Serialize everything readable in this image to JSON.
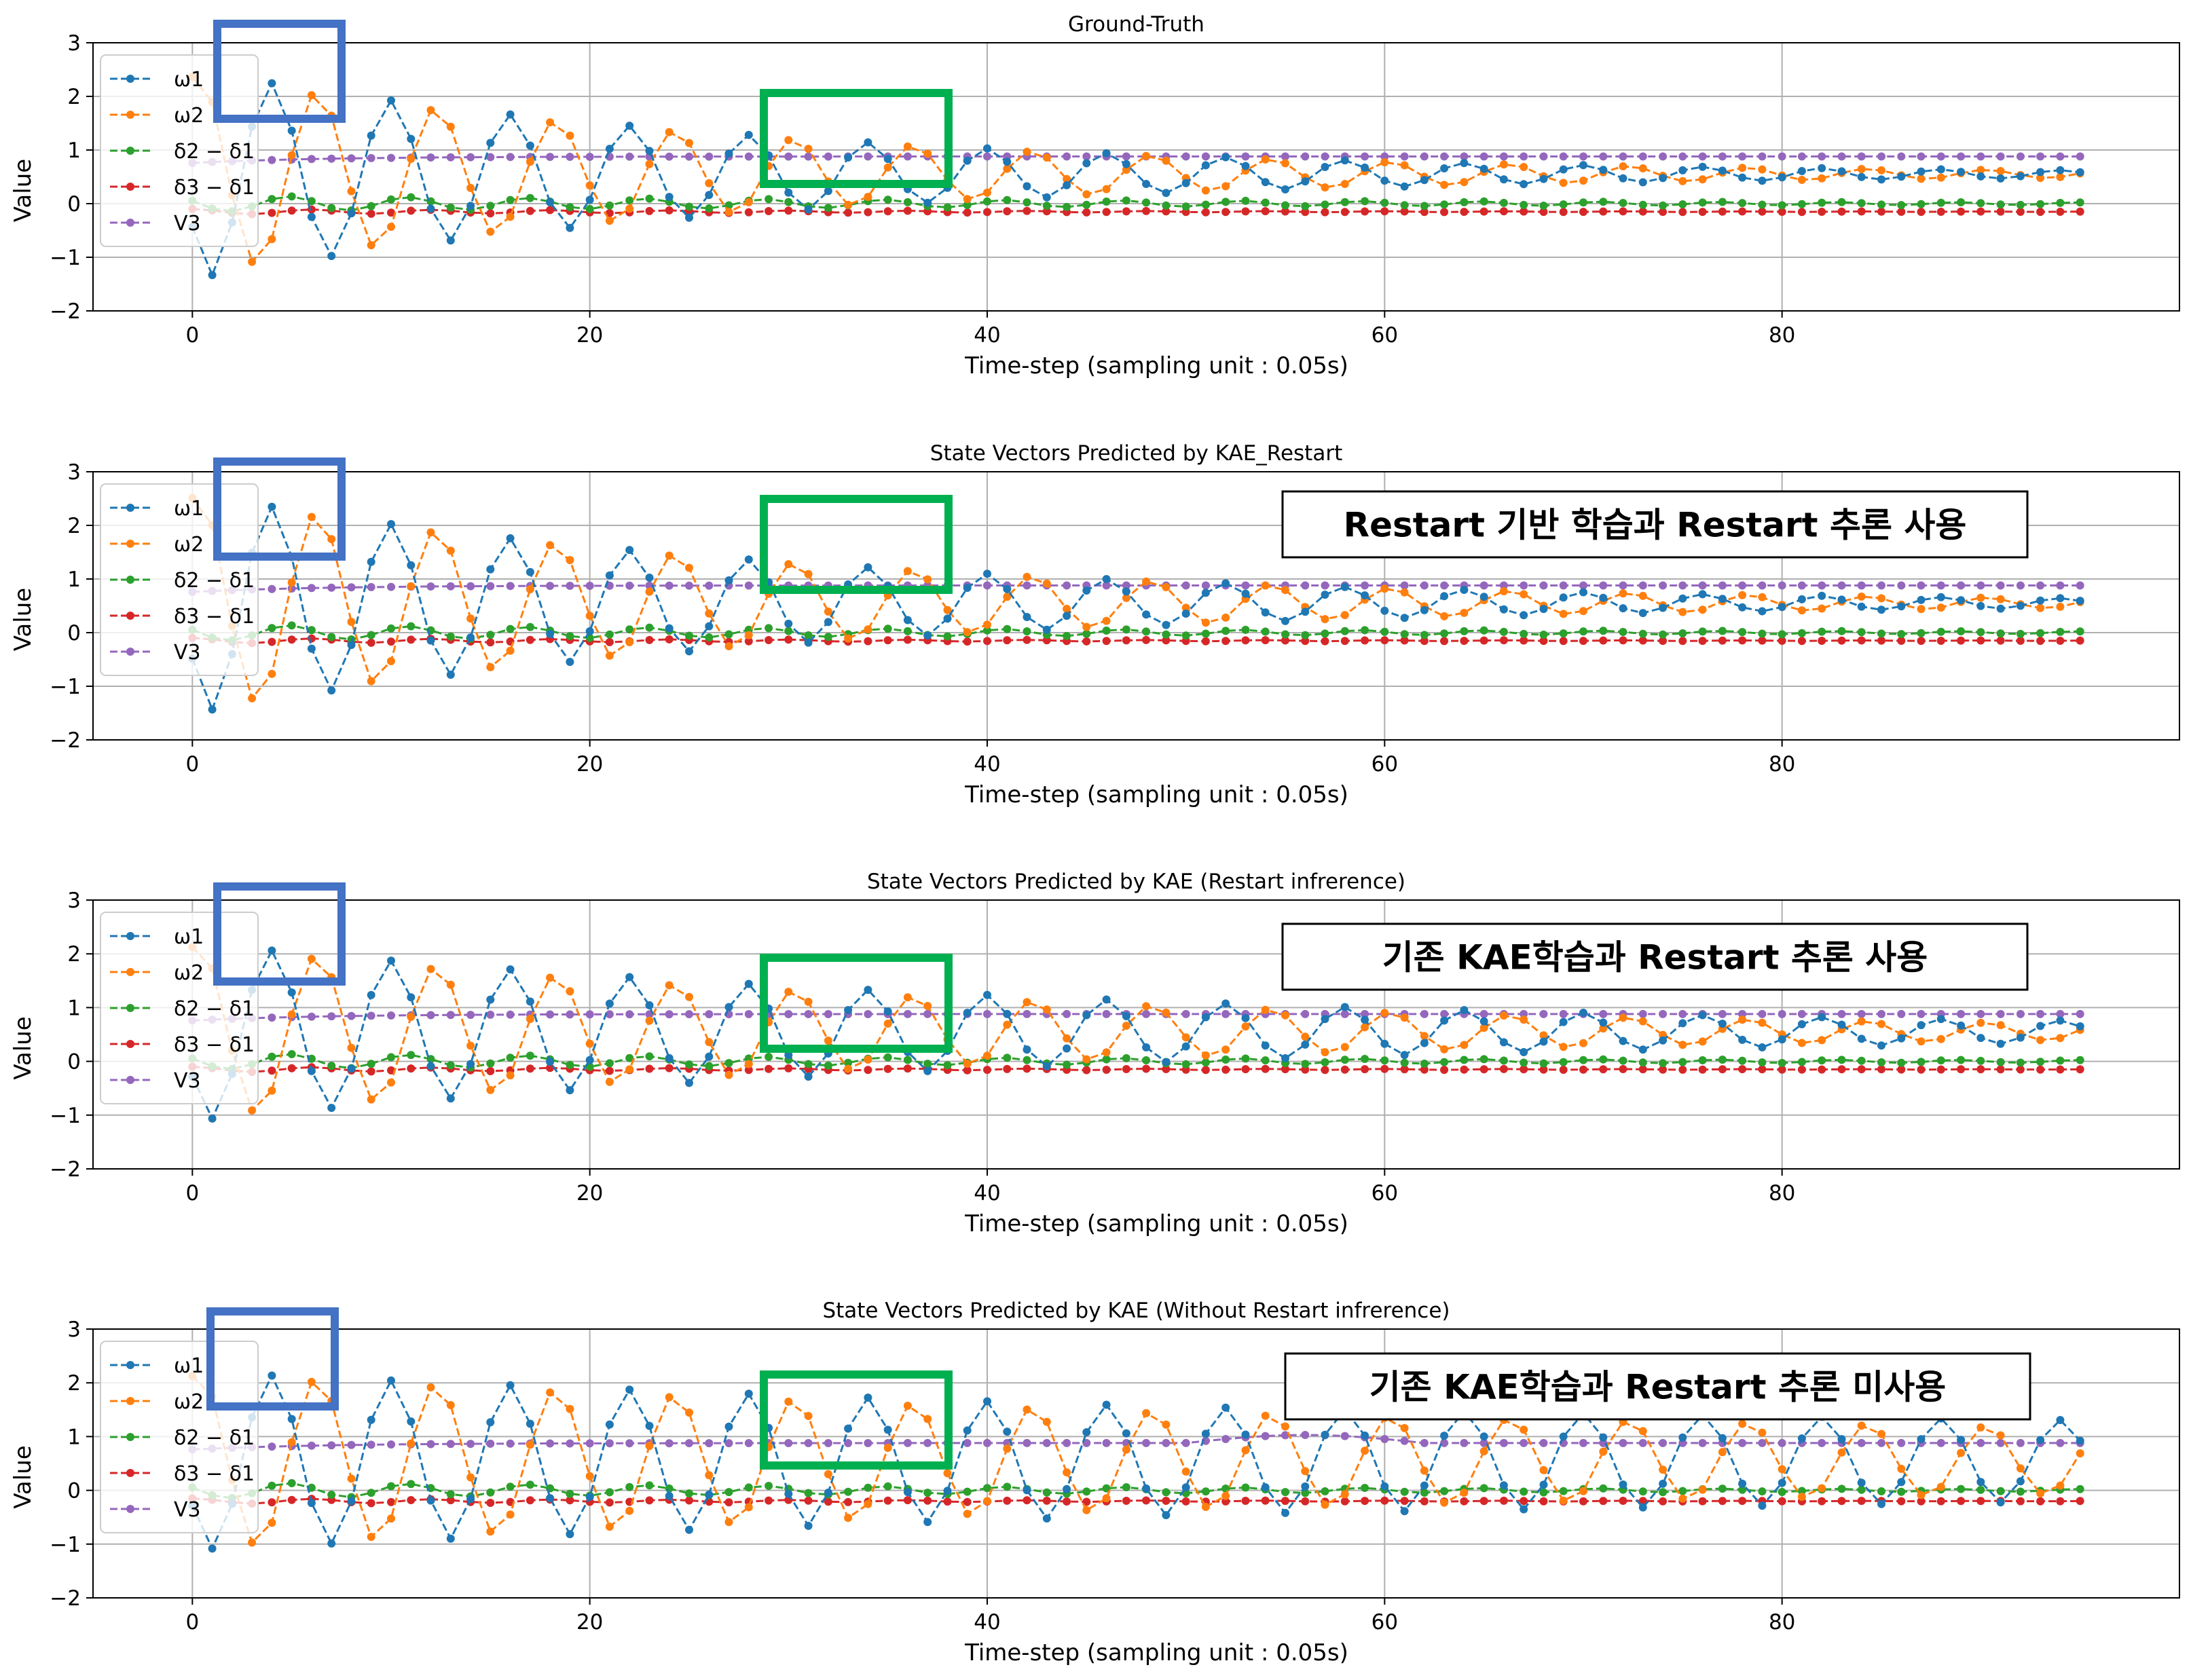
{
  "figure": {
    "colors": {
      "omega1": "#1f77b4",
      "omega2": "#ff7f0e",
      "delta21": "#2ca02c",
      "delta31": "#d62728",
      "V3": "#9467bd",
      "highlight_blue": "#4472c4",
      "highlight_green": "#00b050"
    }
  },
  "chart_data": [
    {
      "type": "line",
      "title": "Ground-Truth",
      "xlabel": "Time-step (sampling unit : 0.05s)",
      "ylabel": "Value",
      "xlim": [
        -5,
        100
      ],
      "ylim": [
        -2,
        3
      ],
      "xticks": [
        "0",
        "20",
        "40",
        "60",
        "80"
      ],
      "yticks": [
        "−2",
        "−1",
        "0",
        "1",
        "2",
        "3"
      ],
      "grid": true,
      "legend": "upper-left",
      "x_range": [
        0,
        95
      ],
      "params": {
        "a1": 1.95,
        "d1": 0.035,
        "a2": 1.9,
        "d2": 0.035,
        "amp21": 0.15,
        "off21": 0.0,
        "off31": -0.15,
        "v3": 0.88,
        "growth": 0
      },
      "series": [
        {
          "name": "ω1",
          "key": "omega1"
        },
        {
          "name": "ω2",
          "key": "omega2"
        },
        {
          "name": "δ2 − δ1",
          "key": "delta21"
        },
        {
          "name": "δ3 − δ1",
          "key": "delta31"
        },
        {
          "name": "V3",
          "key": "V3"
        }
      ],
      "annotation": ""
    },
    {
      "type": "line",
      "title": "State Vectors Predicted by KAE_Restart",
      "xlabel": "Time-step (sampling unit : 0.05s)",
      "ylabel": "Value",
      "xlim": [
        -5,
        100
      ],
      "ylim": [
        -2,
        3
      ],
      "xticks": [
        "0",
        "20",
        "40",
        "60",
        "80"
      ],
      "yticks": [
        "−2",
        "−1",
        "0",
        "1",
        "2",
        "3"
      ],
      "grid": true,
      "legend": "upper-left",
      "x_range": [
        0,
        95
      ],
      "params": {
        "a1": 2.05,
        "d1": 0.033,
        "a2": 2.05,
        "d2": 0.033,
        "amp21": 0.15,
        "off21": 0.0,
        "off31": -0.15,
        "v3": 0.88,
        "growth": 0
      },
      "series": [
        {
          "name": "ω1",
          "key": "omega1"
        },
        {
          "name": "ω2",
          "key": "omega2"
        },
        {
          "name": "δ2 − δ1",
          "key": "delta21"
        },
        {
          "name": "δ3 − δ1",
          "key": "delta31"
        },
        {
          "name": "V3",
          "key": "V3"
        }
      ],
      "annotation": "Restart 기반 학습과 Restart 추론 사용"
    },
    {
      "type": "line",
      "title": "State Vectors Predicted by KAE (Restart infrerence)",
      "xlabel": "Time-step (sampling unit : 0.05s)",
      "ylabel": "Value",
      "xlim": [
        -5,
        100
      ],
      "ylim": [
        -2,
        3
      ],
      "xticks": [
        "0",
        "20",
        "40",
        "60",
        "80"
      ],
      "yticks": [
        "−2",
        "−1",
        "0",
        "1",
        "2",
        "3"
      ],
      "grid": true,
      "legend": "upper-left",
      "x_range": [
        0,
        95
      ],
      "params": {
        "a1": 1.65,
        "d1": 0.022,
        "a2": 1.65,
        "d2": 0.025,
        "amp21": 0.15,
        "off21": 0.0,
        "off31": -0.15,
        "v3": 0.88,
        "growth": 0
      },
      "series": [
        {
          "name": "ω1",
          "key": "omega1"
        },
        {
          "name": "ω2",
          "key": "omega2"
        },
        {
          "name": "δ2 − δ1",
          "key": "delta21"
        },
        {
          "name": "δ3 − δ1",
          "key": "delta31"
        },
        {
          "name": "V3",
          "key": "V3"
        }
      ],
      "annotation": "기존 KAE학습과 Restart 추론 사용"
    },
    {
      "type": "line",
      "title": "State Vectors Predicted by KAE (Without Restart infrerence)",
      "xlabel": "Time-step (sampling unit : 0.05s)",
      "ylabel": "Value",
      "xlim": [
        -5,
        100
      ],
      "ylim": [
        -2,
        3
      ],
      "xticks": [
        "0",
        "20",
        "40",
        "60",
        "80"
      ],
      "yticks": [
        "−2",
        "−1",
        "0",
        "1",
        "2",
        "3"
      ],
      "grid": true,
      "legend": "upper-left",
      "x_range": [
        0,
        95
      ],
      "params": {
        "a1": 1.65,
        "d1": 0.01,
        "a2": 1.65,
        "d2": 0.012,
        "amp21": 0.15,
        "off21": 0.0,
        "off31": -0.2,
        "v3": 0.88,
        "growth": 1
      },
      "series": [
        {
          "name": "ω1",
          "key": "omega1"
        },
        {
          "name": "ω2",
          "key": "omega2"
        },
        {
          "name": "δ2 − δ1",
          "key": "delta21"
        },
        {
          "name": "δ3 − δ1",
          "key": "delta31"
        },
        {
          "name": "V3",
          "key": "V3"
        }
      ],
      "annotation": "기존 KAE학습과 Restart 추론 미사용"
    }
  ]
}
